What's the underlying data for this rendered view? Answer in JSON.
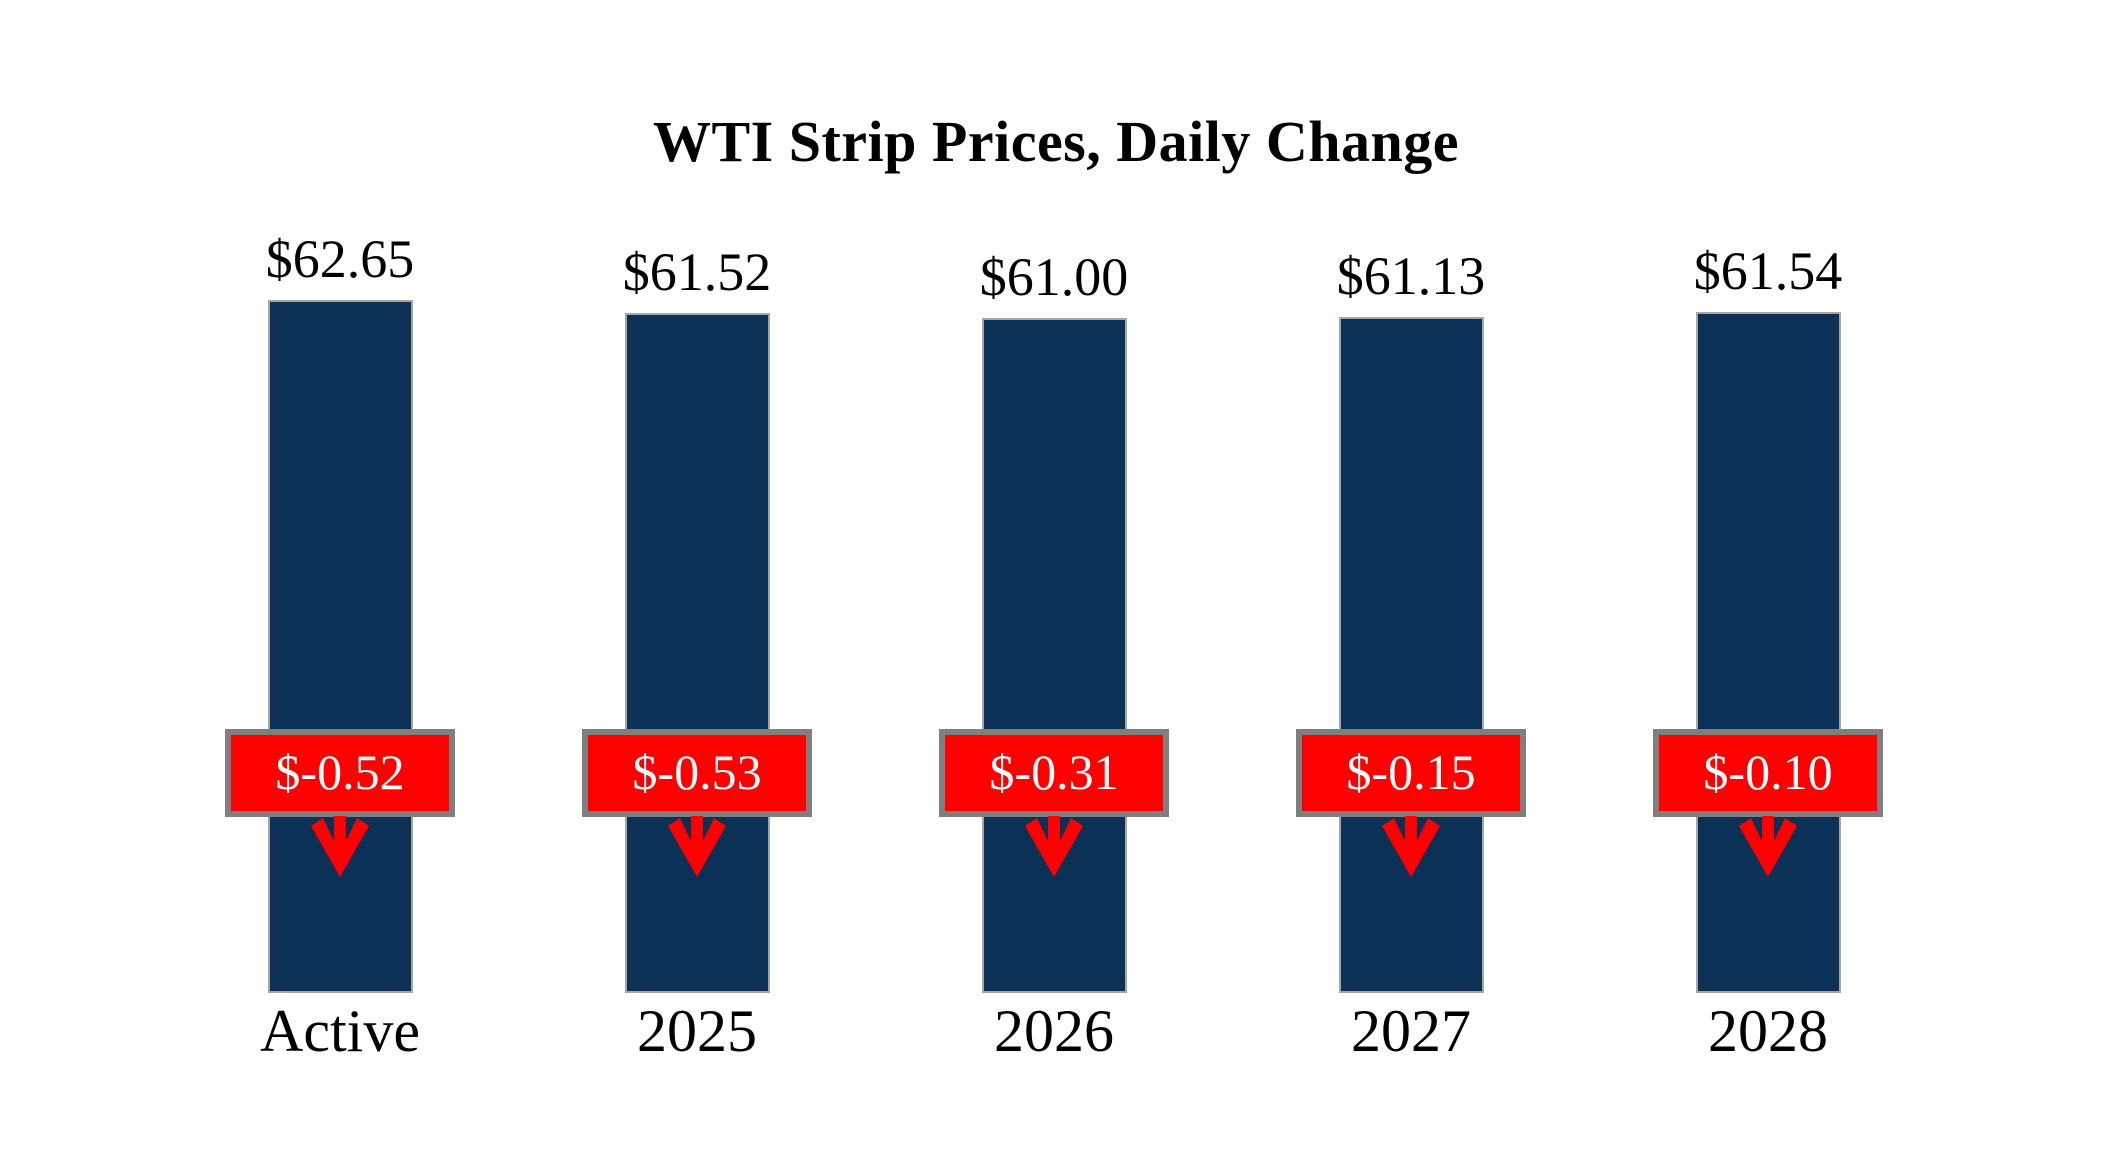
{
  "page": {
    "background": "#FFFFFF"
  },
  "chart_data": {
    "type": "bar",
    "title": "WTI Strip Prices, Daily Change",
    "categories": [
      "Active",
      "2025",
      "2026",
      "2027",
      "2028"
    ],
    "series": [
      {
        "name": "WTI strip price",
        "values": [
          62.65,
          61.52,
          61.0,
          61.13,
          61.54
        ],
        "labels": [
          "$62.65",
          "$61.52",
          "$61.00",
          "$61.13",
          "$61.54"
        ]
      },
      {
        "name": "Daily change",
        "values": [
          -0.52,
          -0.53,
          -0.31,
          -0.15,
          -0.1
        ],
        "labels": [
          "$-0.52",
          "$-0.53",
          "$-0.31",
          "$-0.15",
          "$-0.10"
        ],
        "direction": "down"
      }
    ],
    "legend": "none",
    "axes_visible": false,
    "gridlines": false,
    "ylim": [
      0,
      65
    ],
    "colors": {
      "bar_fill": "#0B3157",
      "bar_border": "#A6A6A6",
      "change_fill": "#FF0000",
      "change_border": "#7F7F7F",
      "change_text": "#FFFFFF",
      "label_text": "#000000",
      "arrow": "#FF0000",
      "background": "#FFFFFF"
    }
  }
}
